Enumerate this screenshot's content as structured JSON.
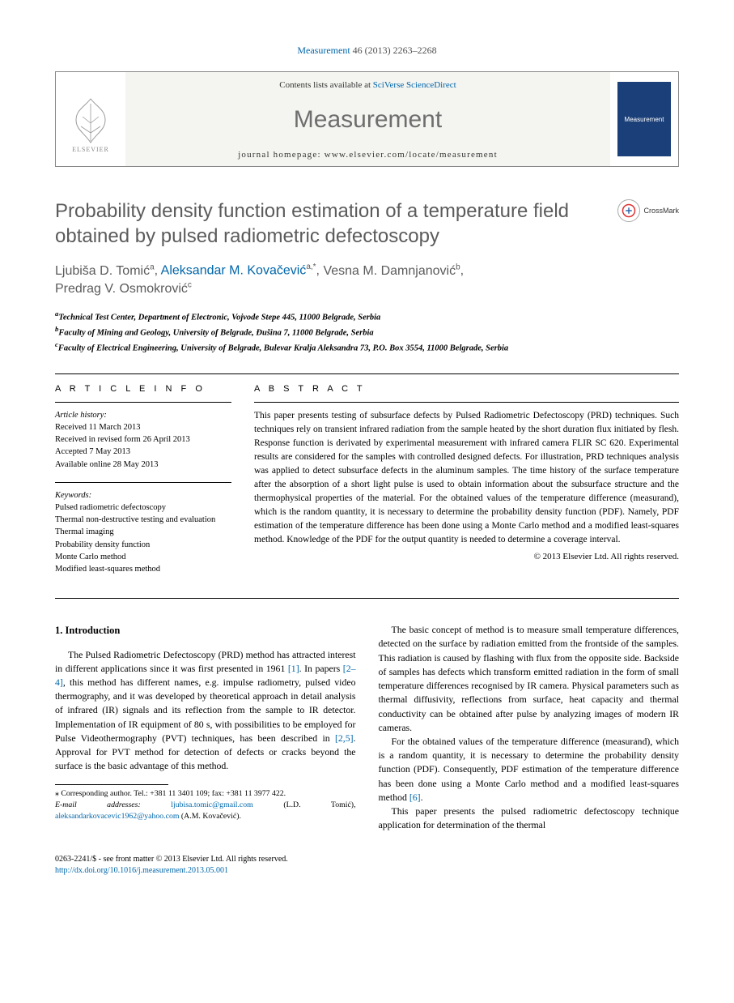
{
  "citation": {
    "journal_link_text": "Measurement",
    "vol_pages": " 46 (2013) 2263–2268"
  },
  "header": {
    "contents_prefix": "Contents lists available at ",
    "contents_link": "SciVerse ScienceDirect",
    "journal_name": "Measurement",
    "homepage_label": "journal homepage: ",
    "homepage_url": "www.elsevier.com/locate/measurement",
    "publisher_name": "ELSEVIER",
    "cover_label": "Measurement"
  },
  "crossmark_label": "CrossMark",
  "title": "Probability density function estimation of a temperature field obtained by pulsed radiometric defectoscopy",
  "authors_html": [
    {
      "name": "Ljubiša D. Tomić",
      "sup": "a"
    },
    {
      "name": "Aleksandar M. Kovačević",
      "sup": "a,*",
      "link": true
    },
    {
      "name": "Vesna M. Damnjanović",
      "sup": "b"
    },
    {
      "name": "Predrag V. Osmokrović",
      "sup": "c"
    }
  ],
  "affiliations": [
    {
      "sup": "a",
      "text": "Technical Test Center, Department of Electronic, Vojvode Stepe 445, 11000 Belgrade, Serbia"
    },
    {
      "sup": "b",
      "text": "Faculty of Mining and Geology, University of Belgrade, Đušina 7, 11000 Belgrade, Serbia"
    },
    {
      "sup": "c",
      "text": "Faculty of Electrical Engineering, University of Belgrade, Bulevar Kralja Aleksandra 73, P.O. Box 3554, 11000 Belgrade, Serbia"
    }
  ],
  "info": {
    "heading": "A R T I C L E   I N F O",
    "history_label": "Article history:",
    "history": [
      "Received 11 March 2013",
      "Received in revised form 26 April 2013",
      "Accepted 7 May 2013",
      "Available online 28 May 2013"
    ],
    "keywords_label": "Keywords:",
    "keywords": [
      "Pulsed radiometric defectoscopy",
      "Thermal non-destructive testing and evaluation",
      "Thermal imaging",
      "Probability density function",
      "Monte Carlo method",
      "Modified least-squares method"
    ]
  },
  "abstract": {
    "heading": "A B S T R A C T",
    "text": "This paper presents testing of subsurface defects by Pulsed Radiometric Defectoscopy (PRD) techniques. Such techniques rely on transient infrared radiation from the sample heated by the short duration flux initiated by flesh. Response function is derivated by experimental measurement with infrared camera FLIR SC 620. Experimental results are considered for the samples with controlled designed defects. For illustration, PRD techniques analysis was applied to detect subsurface defects in the aluminum samples. The time history of the surface temperature after the absorption of a short light pulse is used to obtain information about the subsurface structure and the thermophysical properties of the material. For the obtained values of the temperature difference (measurand), which is the random quantity, it is necessary to determine the probability density function (PDF). Namely, PDF estimation of the temperature difference has been done using a Monte Carlo method and a modified least-squares method. Knowledge of the PDF for the output quantity is needed to determine a coverage interval.",
    "copyright": "© 2013 Elsevier Ltd. All rights reserved."
  },
  "body": {
    "section_heading": "1. Introduction",
    "left_paras": [
      "The Pulsed Radiometric Defectoscopy (PRD) method has attracted interest in different applications since it was first presented in 1961 [1]. In papers [2–4], this method has different names, e.g. impulse radiometry, pulsed video thermography, and it was developed by theoretical approach in detail analysis of infrared (IR) signals and its reflection from the sample to IR detector. Implementation of IR equipment of 80 s, with possibilities to be employed for Pulse Videothermography (PVT) techniques, has been described in [2,5]. Approval for PVT method for detection of defects or cracks beyond the surface is the basic advantage of this method."
    ],
    "right_paras": [
      "The basic concept of method is to measure small temperature differences, detected on the surface by radiation emitted from the frontside of the samples. This radiation is caused by flashing with flux from the opposite side. Backside of samples has defects which transform emitted radiation in the form of small temperature differences recognised by IR camera. Physical parameters such as thermal diffusivity, reflections from surface, heat capacity and thermal conductivity can be obtained after pulse by analyzing images of modern IR cameras.",
      "For the obtained values of the temperature difference (measurand), which is a random quantity, it is necessary to determine the probability density function (PDF). Consequently, PDF estimation of the temperature difference has been done using a Monte Carlo method and a modified least-squares method [6].",
      "This paper presents the pulsed radiometric defectoscopy technique application for determination of the thermal"
    ]
  },
  "footnote": {
    "corr_label": "⁎  Corresponding author. Tel.: +381 11 3401 109; fax: +381 11 3977 422.",
    "email_label": "E-mail addresses:",
    "emails": [
      {
        "addr": "ljubisa.tomic@gmail.com",
        "who": "(L.D. Tomić)"
      },
      {
        "addr": "aleksandarkovacevic1962@yahoo.com",
        "who": "(A.M. Kovačević)."
      }
    ]
  },
  "footer": {
    "issn_line": "0263-2241/$ - see front matter © 2013 Elsevier Ltd. All rights reserved.",
    "doi": "http://dx.doi.org/10.1016/j.measurement.2013.05.001"
  },
  "colors": {
    "link": "#0066aa",
    "title_gray": "#5b5b5b",
    "journal_gray": "#6e6e6e",
    "cover_blue": "#1b3f78"
  }
}
